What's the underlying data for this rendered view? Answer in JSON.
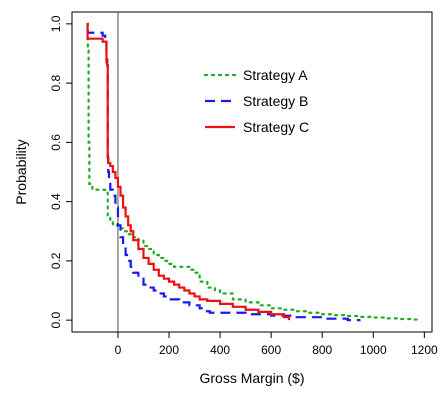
{
  "chart_data": {
    "type": "line",
    "title": "",
    "xlabel": "Gross Margin ($)",
    "ylabel": "Probability",
    "xlim": [
      -180,
      1230
    ],
    "ylim": [
      -0.04,
      1.04
    ],
    "x_ticks": [
      0,
      200,
      400,
      600,
      800,
      1000,
      1200
    ],
    "y_ticks": [
      0.0,
      0.2,
      0.4,
      0.6,
      0.8,
      1.0
    ],
    "x_tick_labels": [
      "0",
      "200",
      "400",
      "600",
      "800",
      "1000",
      "1200"
    ],
    "y_tick_labels": [
      "0.0",
      "0.2",
      "0.4",
      "0.6",
      "0.8",
      "1.0"
    ],
    "vline_x": 0,
    "grid": false,
    "legend_position": "top-right",
    "series": [
      {
        "name": "Strategy A",
        "color": "#22aa22",
        "style": "dotted",
        "x": [
          -120,
          -118,
          -115,
          -112,
          -100,
          -80,
          -50,
          -40,
          -30,
          -20,
          0,
          20,
          40,
          60,
          80,
          100,
          120,
          140,
          160,
          180,
          200,
          220,
          250,
          280,
          300,
          320,
          350,
          380,
          400,
          450,
          500,
          550,
          600,
          650,
          700,
          750,
          800,
          850,
          900,
          950,
          1000,
          1050,
          1100,
          1150,
          1180
        ],
        "y": [
          1.0,
          0.92,
          0.6,
          0.46,
          0.44,
          0.44,
          0.43,
          0.35,
          0.33,
          0.32,
          0.31,
          0.3,
          0.29,
          0.28,
          0.27,
          0.25,
          0.24,
          0.22,
          0.21,
          0.2,
          0.19,
          0.18,
          0.18,
          0.17,
          0.16,
          0.13,
          0.11,
          0.1,
          0.09,
          0.07,
          0.06,
          0.05,
          0.04,
          0.035,
          0.03,
          0.025,
          0.02,
          0.017,
          0.014,
          0.011,
          0.009,
          0.006,
          0.004,
          0.002,
          0.0
        ]
      },
      {
        "name": "Strategy B",
        "color": "#1a1aee",
        "style": "dashed",
        "x": [
          -120,
          -119,
          -100,
          -60,
          -50,
          -45,
          -42,
          -40,
          -38,
          -35,
          -30,
          -20,
          -10,
          0,
          10,
          20,
          30,
          40,
          50,
          60,
          80,
          100,
          120,
          140,
          160,
          180,
          200,
          240,
          280,
          300,
          320,
          340,
          360,
          400,
          450,
          500,
          550,
          600,
          650,
          700,
          750,
          800,
          850,
          900,
          950
        ],
        "y": [
          0.98,
          0.97,
          0.97,
          0.96,
          0.95,
          0.88,
          0.86,
          0.55,
          0.5,
          0.47,
          0.44,
          0.42,
          0.38,
          0.32,
          0.28,
          0.25,
          0.22,
          0.2,
          0.18,
          0.16,
          0.14,
          0.12,
          0.11,
          0.1,
          0.09,
          0.08,
          0.07,
          0.06,
          0.05,
          0.05,
          0.04,
          0.03,
          0.025,
          0.025,
          0.025,
          0.02,
          0.02,
          0.015,
          0.015,
          0.01,
          0.01,
          0.005,
          0.005,
          0.0,
          0.0
        ]
      },
      {
        "name": "Strategy C",
        "color": "#ee1111",
        "style": "solid",
        "x": [
          -120,
          -119,
          -100,
          -60,
          -45,
          -42,
          -40,
          -38,
          -30,
          -20,
          -10,
          0,
          10,
          20,
          30,
          40,
          50,
          60,
          80,
          100,
          120,
          140,
          160,
          180,
          200,
          220,
          240,
          260,
          280,
          300,
          320,
          350,
          400,
          450,
          500,
          550,
          600,
          650,
          670
        ],
        "y": [
          1.0,
          0.95,
          0.95,
          0.94,
          0.87,
          0.86,
          0.55,
          0.53,
          0.52,
          0.5,
          0.48,
          0.45,
          0.42,
          0.38,
          0.35,
          0.32,
          0.3,
          0.27,
          0.24,
          0.21,
          0.19,
          0.17,
          0.15,
          0.14,
          0.13,
          0.12,
          0.11,
          0.1,
          0.09,
          0.08,
          0.07,
          0.065,
          0.055,
          0.045,
          0.035,
          0.028,
          0.02,
          0.01,
          0.0
        ]
      }
    ]
  }
}
